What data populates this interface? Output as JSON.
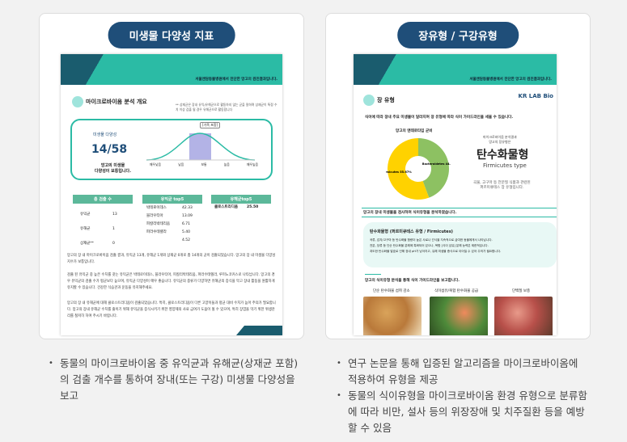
{
  "left": {
    "title": "미생물 다양성 지표",
    "doc": {
      "header": "서울엔담동물병원에서 진단한 망고의 검진결과입니다.",
      "section": "마이크로바이옴 분석 개요",
      "note": "** 상재균은 장내 유익/유해균으로 활동하지 않는 균을 말하며 상재균이 특정 수치 이상 검출 될 경우 유해균으로 활동합니다",
      "diversity_label": "미생물 다양성",
      "diversity_value": "14/58",
      "diversity_desc1": "망고의 미생물",
      "diversity_desc2": "다양성이 보통입니다.",
      "curve_tag": "[가족 포함]",
      "curve_labels": [
        "매우낮음",
        "낮음",
        "보통",
        "높음",
        "매우높음"
      ],
      "curve_highlight": "보통",
      "total_header": "총 검출 수",
      "total_rows": [
        [
          "유익균",
          "13"
        ],
        [
          "유해균",
          "1"
        ],
        [
          "상재균**",
          "0"
        ]
      ],
      "good_header": "유익균 top5",
      "good_rows": [
        [
          "박테로이데스",
          "42.33"
        ],
        [
          "블라우티아",
          "13.09"
        ],
        [
          "피칼리박테리움",
          "6.71"
        ],
        [
          "파라수테렐라",
          "5.40"
        ],
        [
          "",
          "4.52"
        ]
      ],
      "bad_header": "유해균top5",
      "bad_rows": [
        [
          "클로스트리디움",
          "25.50"
        ]
      ],
      "para1": "망고의 장 내 마이크로바이옴 검출 결과, 유익균 13개, 유해균 1개와 상재균 0개로 총 14개의 균이 검출되었습니다. 망고의 장 내 미생물 다양성 지수가 보통입니다.",
      "para2": "검출 된 유익균 중 높은 수치를 갖는 유익균은 박테로이데스, 블라우티아, 피칼리박테리움, 파라수테렐라, 루미노코커스로 나타납니다. 망고의 경우 유익균의 검출 수가 평균보다 높으며, 유익균 다양성이 매우 좋습니다. 유익균의 종류가 다양하면 유해균의 증식을 막고 장내 활동을 원활하게 유지할 수 있습니다. 건강한 식습관과 운동을 유지해주세요.",
      "para3": "망고의 장 내 유해균에 대해 클로스트리디움이 검출되었습니다. 특히, 클로스트리디움이 다른 고양이들과 평균 대비 수치가 높아 주의가 필요합니다. 망고의 장내 유해균 수치를 줄이기 위해 유익균을 증식시키기 위한 영양제의 사료 급여가 도움이 될 수 있으며, 특히 장염을 막기 위한 위생관리를 철저히 하여 주시기 바랍니다."
    },
    "bullets": [
      "동물의 마이크로바이옴 중 유익균과 유해균(상재균 포함)의 검출 개수를 통하여 장내(또는 구강) 미생물 다양성을 보고"
    ]
  },
  "right": {
    "title": "장유형 / 구강유형",
    "doc": {
      "header": "서울엔담동물병원에서 진단한 망고의 검진결과입니다.",
      "logo": "KR LAB Bio",
      "section": "장 유형",
      "intro": "식이에 따라 장내 주요 미생물이 달라지며 장 유형에 따라 식이 가이드라인을 세울 수 있습니다.",
      "chart_title": "망고의 엔테로타입 균비",
      "chart_data": {
        "type": "pie",
        "title": "망고의 엔테로타입 균비",
        "series": [
          {
            "name": "Firmicutes",
            "value": 55.67,
            "color": "#ffd200"
          },
          {
            "name": "Bacteroidetes",
            "value": 44.33,
            "color": "#8dc162"
          }
        ]
      },
      "result_caption1": "마이크로바이옴 분석결과",
      "result_caption2": "망고의 장유형은",
      "result_type": "탄수화물형",
      "result_type_en": "Firmicutes type",
      "result_desc1": "곡물, 고구마 등 전분질 식품과 관련된",
      "result_desc2": "퍼르미큐테스 장 유형입니다.",
      "analysis": "망고의 장내 미생물을 검사하여 식이유형을 분석하였습니다.",
      "type_title": "탄수화물형 (퍼르미큐테스 유형 / Firmicutes)",
      "type_points": [
        "곡류, 감자/고구마 등 탄수화물 함량이 높은 사료나 간식을 지속적으로 급여한 동물에게서 나타납니다.",
        "전분, 당류 등 단순 탄수화물 분해에 특화되어 있으나, 복합 [식이 섬유] 분해 능력은 제한적입니다.",
        "과도한 탄수화물 발효로 인해 장내 pH가 낮아지고, 유해 미생물 증식으로 이어질 수 있어 주의가 필요합니다."
      ],
      "guide": "망고의 식이유형 분석을 통해 식이 가이드라인을 보고합니다.",
      "foods": [
        "단순 탄수화물 섭취 감소",
        "식이섬유/복합 탄수화물 공급",
        "단백질 보충"
      ]
    },
    "bullets": [
      "연구 논문을 통해 입증된 알고리즘을 마이크로바이옴에 적용하여 유형을 제공",
      "동물의 식이유형을 마이크로바이옴 환경 유형으로 분류함에 따라 비만, 설사 등의 위장장애 및 치주질환 등을 예방할 수 있음"
    ]
  }
}
